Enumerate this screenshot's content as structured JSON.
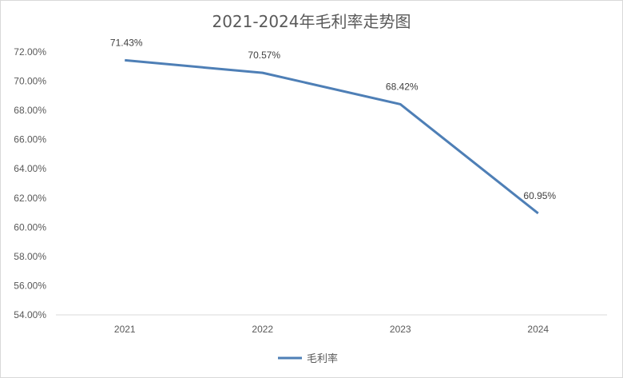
{
  "chart_data": {
    "type": "line",
    "title": "2021-2024年毛利率走势图",
    "categories": [
      "2021",
      "2022",
      "2023",
      "2024"
    ],
    "series": [
      {
        "name": "毛利率",
        "values": [
          71.43,
          70.57,
          68.42,
          60.95
        ],
        "labels": [
          "71.43%",
          "70.57%",
          "68.42%",
          "60.95%"
        ],
        "color": "#4e7fb6"
      }
    ],
    "y_ticks": [
      "72.00%",
      "70.00%",
      "68.00%",
      "66.00%",
      "64.00%",
      "62.00%",
      "60.00%",
      "58.00%",
      "56.00%",
      "54.00%"
    ],
    "ylim": [
      54,
      72
    ],
    "grid": false,
    "legend_position": "bottom",
    "colors": {
      "axis": "#d9d9d9",
      "text": "#595959",
      "line": "#4e7fb6"
    }
  }
}
